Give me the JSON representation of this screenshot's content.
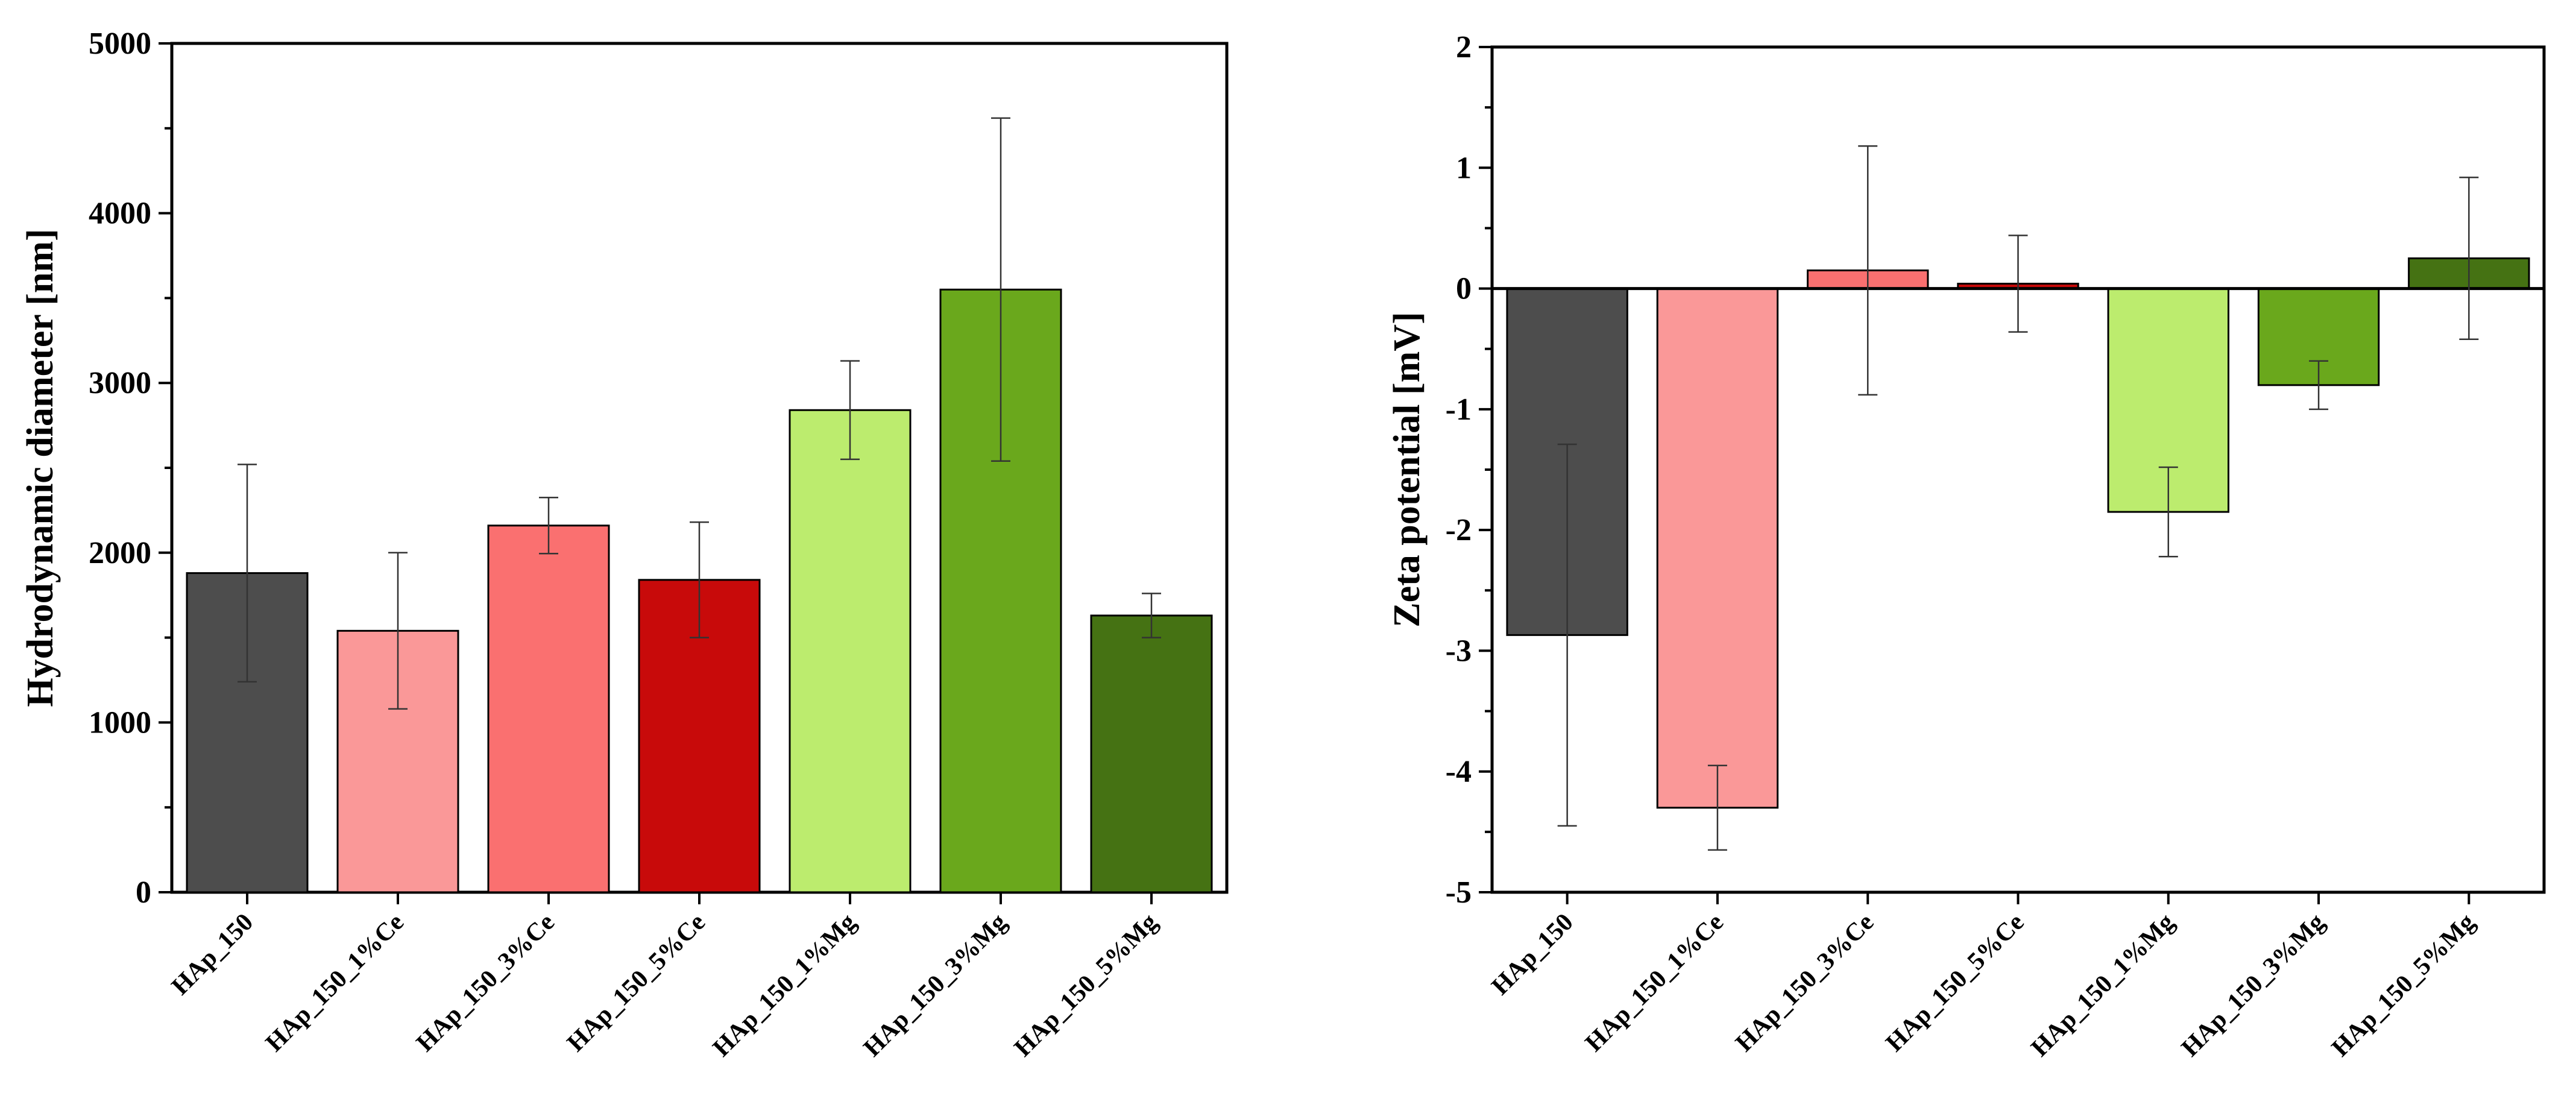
{
  "chart_data": [
    {
      "type": "bar",
      "title": "",
      "xlabel": "",
      "ylabel": "Hydrodynamic diameter [nm]",
      "ylim": [
        0,
        5000
      ],
      "yticks": [
        0,
        1000,
        2000,
        3000,
        4000,
        5000
      ],
      "ytick_labels": [
        "0",
        "1000",
        "2000",
        "3000",
        "4000",
        "5000"
      ],
      "y_minor_step": 500,
      "grid": false,
      "legend": "none",
      "categories": [
        "HAp_150",
        "HAp_150_1%Ce",
        "HAp_150_3%Ce",
        "HAp_150_5%Ce",
        "HAp_150_1%Mg",
        "HAp_150_3%Mg",
        "HAp_150_5%Mg"
      ],
      "values": [
        1880,
        1540,
        2160,
        1840,
        2840,
        3550,
        1630
      ],
      "errors": [
        640,
        460,
        165,
        340,
        290,
        1010,
        130
      ],
      "colors": [
        "#4d4d4d",
        "#fa9898",
        "#fa7070",
        "#c80a0a",
        "#bcec6e",
        "#6aa81c",
        "#457213"
      ]
    },
    {
      "type": "bar",
      "title": "",
      "xlabel": "",
      "ylabel": "Zeta potential [mV]",
      "ylim": [
        -5,
        2
      ],
      "yticks": [
        -5,
        -4,
        -3,
        -2,
        -1,
        0,
        1,
        2
      ],
      "ytick_labels": [
        "-5",
        "-4",
        "-3",
        "-2",
        "-1",
        "0",
        "1",
        "2"
      ],
      "y_minor_step": 0.5,
      "grid": false,
      "legend": "none",
      "zero_line": true,
      "categories": [
        "HAp_150",
        "HAp_150_1%Ce",
        "HAp_150_3%Ce",
        "HAp_150_5%Ce",
        "HAp_150_1%Mg",
        "HAp_150_3%Mg",
        "HAp_150_5%Mg"
      ],
      "values": [
        -2.87,
        -4.3,
        0.15,
        0.04,
        -1.85,
        -0.8,
        0.25
      ],
      "errors": [
        1.58,
        0.35,
        1.03,
        0.4,
        0.37,
        0.2,
        0.67
      ],
      "colors": [
        "#4d4d4d",
        "#fa9898",
        "#fa7070",
        "#c80a0a",
        "#bcec6e",
        "#6aa81c",
        "#457213"
      ]
    }
  ]
}
